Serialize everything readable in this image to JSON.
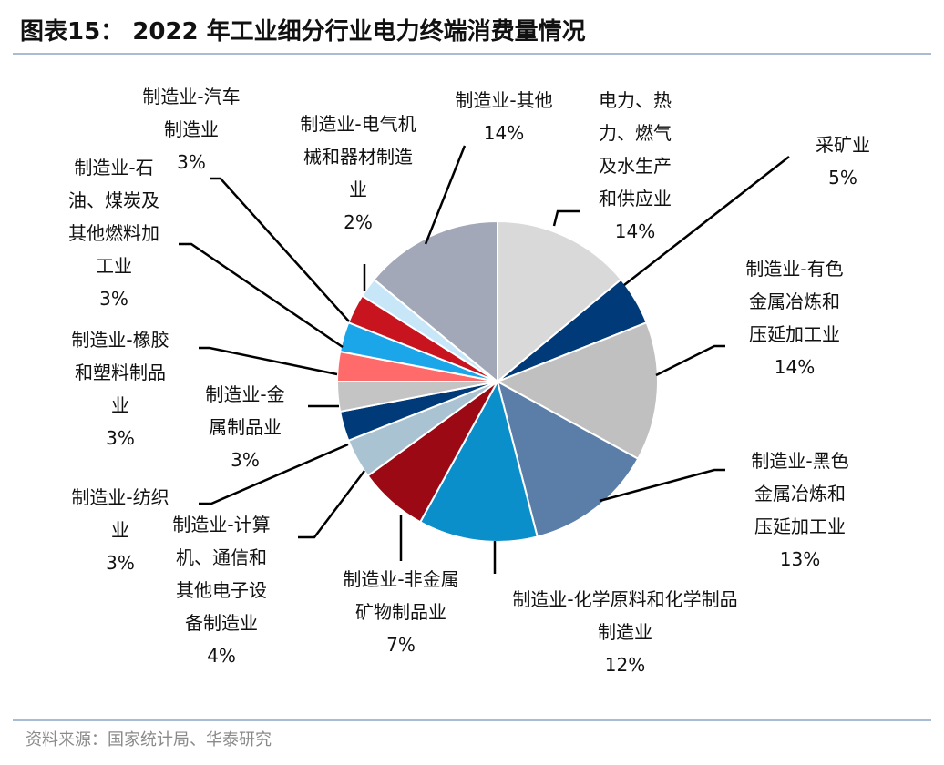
{
  "figure": {
    "title": "图表15： 2022 年工业细分行业电力终端消费量情况",
    "source": "资料来源：国家统计局、华泰研究"
  },
  "chart_data": {
    "type": "pie",
    "slices": [
      {
        "label_lines": [
          "电力、热",
          "力、燃气",
          "及水生产",
          "和供应业"
        ],
        "value": 14,
        "value_label": "14%",
        "color": "#d9d9d9"
      },
      {
        "label_lines": [
          "采矿业"
        ],
        "value": 5,
        "value_label": "5%",
        "color": "#003a78"
      },
      {
        "label_lines": [
          "制造业-有色",
          "金属冶炼和",
          "压延加工业"
        ],
        "value": 14,
        "value_label": "14%",
        "color": "#c0c0c0"
      },
      {
        "label_lines": [
          "制造业-黑色",
          "金属冶炼和",
          "压延加工业"
        ],
        "value": 13,
        "value_label": "13%",
        "color": "#5b7ea8"
      },
      {
        "label_lines": [
          "制造业-化学原料和化学制品",
          "制造业"
        ],
        "value": 12,
        "value_label": "12%",
        "color": "#0a8fcb"
      },
      {
        "label_lines": [
          "制造业-非金属",
          "矿物制品业"
        ],
        "value": 7,
        "value_label": "7%",
        "color": "#9b0a14"
      },
      {
        "label_lines": [
          "制造业-计算",
          "机、通信和",
          "其他电子设",
          "备制造业"
        ],
        "value": 4,
        "value_label": "4%",
        "color": "#aac3d3"
      },
      {
        "label_lines": [
          "制造业-纺织",
          "业"
        ],
        "value": 3,
        "value_label": "3%",
        "color": "#003a78"
      },
      {
        "label_lines": [
          "制造业-金",
          "属制品业"
        ],
        "value": 3,
        "value_label": "3%",
        "color": "#c4c4c4"
      },
      {
        "label_lines": [
          "制造业-橡胶",
          "和塑料制品",
          "业"
        ],
        "value": 3,
        "value_label": "3%",
        "color": "#ff6b6b"
      },
      {
        "label_lines": [
          "制造业-石",
          "油、煤炭及",
          "其他燃料加",
          "工业"
        ],
        "value": 3,
        "value_label": "3%",
        "color": "#1aa6e8"
      },
      {
        "label_lines": [
          "制造业-汽车",
          "制造业"
        ],
        "value": 3,
        "value_label": "3%",
        "color": "#c8141e"
      },
      {
        "label_lines": [
          "制造业-电气机",
          "械和器材制造",
          "业"
        ],
        "value": 2,
        "value_label": "2%",
        "color": "#c7e7f8"
      },
      {
        "label_lines": [
          "制造业-其他"
        ],
        "value": 14,
        "value_label": "14%",
        "color": "#a3a8b8"
      }
    ],
    "start_angle_deg": 0,
    "direction": "clockwise",
    "legend": "none",
    "data_labels": "outside-with-leader-lines"
  }
}
